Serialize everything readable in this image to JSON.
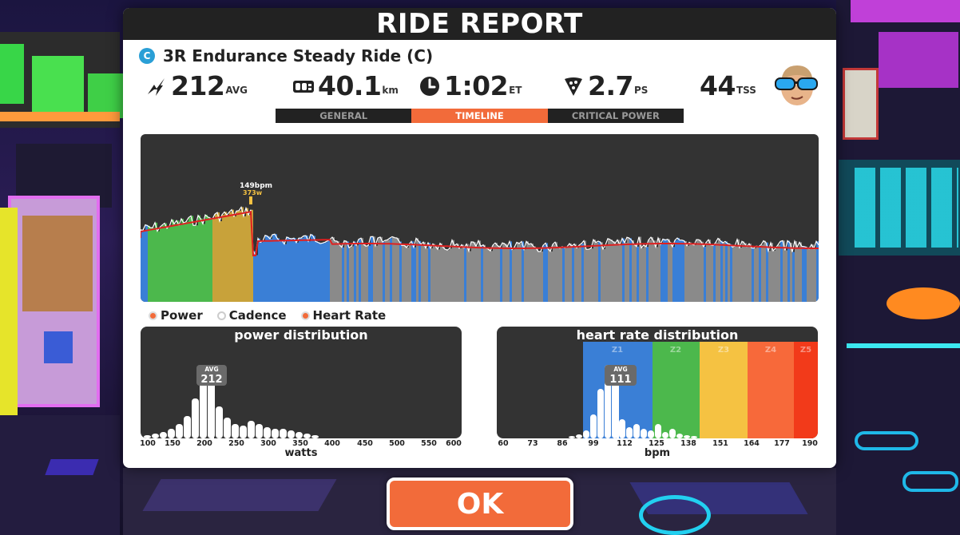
{
  "window": {
    "title": "RIDE REPORT"
  },
  "ride": {
    "category": "C",
    "name": "3R Endurance Steady Ride (C)"
  },
  "stats": {
    "power_value": "212",
    "power_unit": "AVG",
    "distance_value": "40.1",
    "distance_unit": "km",
    "time_value": "1:02",
    "time_unit": "ET",
    "pizza_value": "2.7",
    "pizza_unit": "PS",
    "tss_value": "44",
    "tss_unit": "TSS"
  },
  "tabs": [
    {
      "label": "GENERAL",
      "active": false
    },
    {
      "label": "TIMELINE",
      "active": true
    },
    {
      "label": "CRITICAL POWER",
      "active": false
    }
  ],
  "timeline": {
    "peak_hr_label": "149bpm",
    "peak_power_label": "373w"
  },
  "legend": [
    {
      "label": "Power",
      "on": true
    },
    {
      "label": "Cadence",
      "on": false
    },
    {
      "label": "Heart Rate",
      "on": true
    }
  ],
  "power_distribution": {
    "title": "power distribution",
    "avg_label": "AVG",
    "avg_value": "212",
    "x_ticks": [
      "100",
      "150",
      "200",
      "250",
      "300",
      "350",
      "400",
      "450",
      "500",
      "550",
      "600"
    ],
    "x_label": "watts"
  },
  "hr_distribution": {
    "title": "heart rate distribution",
    "avg_label": "AVG",
    "avg_value": "111",
    "zones": [
      "Z1",
      "Z2",
      "Z3",
      "Z4",
      "Z5"
    ],
    "x_ticks": [
      "60",
      "73",
      "86",
      "99",
      "112",
      "125",
      "138",
      "151",
      "164",
      "177",
      "190"
    ],
    "x_label": "bpm"
  },
  "ok_button": {
    "label": "OK"
  },
  "colors": {
    "accent": "#f26b3a",
    "zone_blue": "#3a7fd6",
    "zone_green": "#4cb84c",
    "zone_yellow": "#f5c242",
    "zone_orange": "#f7693a",
    "zone_red": "#f23a1a",
    "hr_line": "#e02020"
  }
}
